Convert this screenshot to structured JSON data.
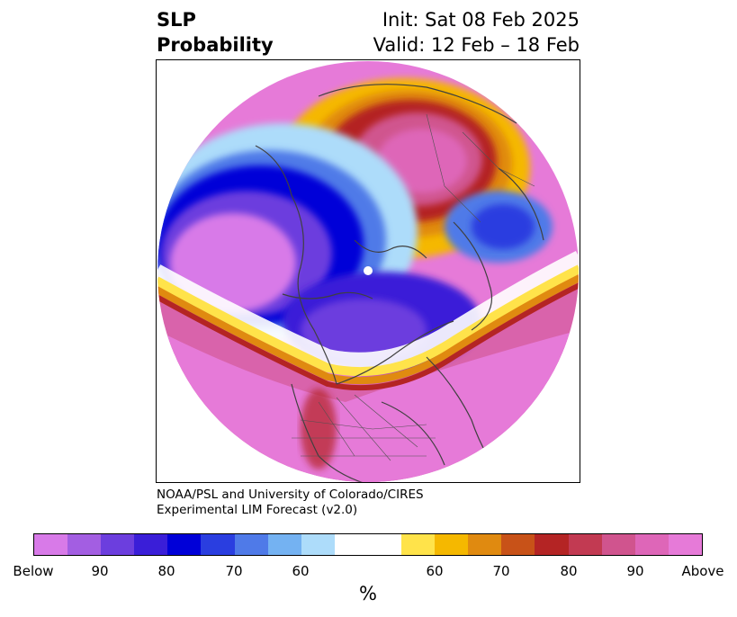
{
  "title": {
    "left_line1": "SLP",
    "left_line2": "Probability",
    "right_line1": "Init: Sat 08 Feb 2025",
    "right_line2": "Valid: 12 Feb – 18 Feb"
  },
  "credit": {
    "line1": "NOAA/PSL and University of Colorado/CIRES",
    "line2": "Experimental LIM Forecast (v2.0)"
  },
  "colorbar": {
    "colors": [
      "#d87ae8",
      "#a35ee2",
      "#6c3ede",
      "#3a1ed8",
      "#0000d8",
      "#2a3ee0",
      "#4f7ae8",
      "#74b2f2",
      "#addcfa",
      "#ffffff",
      "#ffffff",
      "#ffe34a",
      "#f5b800",
      "#e08a10",
      "#c85218",
      "#b42424",
      "#c23a52",
      "#d0548e",
      "#de66b8",
      "#e67ad8"
    ],
    "ticks": [
      "Below",
      "90",
      "80",
      "70",
      "60",
      "60",
      "70",
      "80",
      "90",
      "Above"
    ],
    "unit": "%"
  },
  "map": {
    "projection": "north-polar-stereographic",
    "field": "sea-level-pressure-probability"
  }
}
